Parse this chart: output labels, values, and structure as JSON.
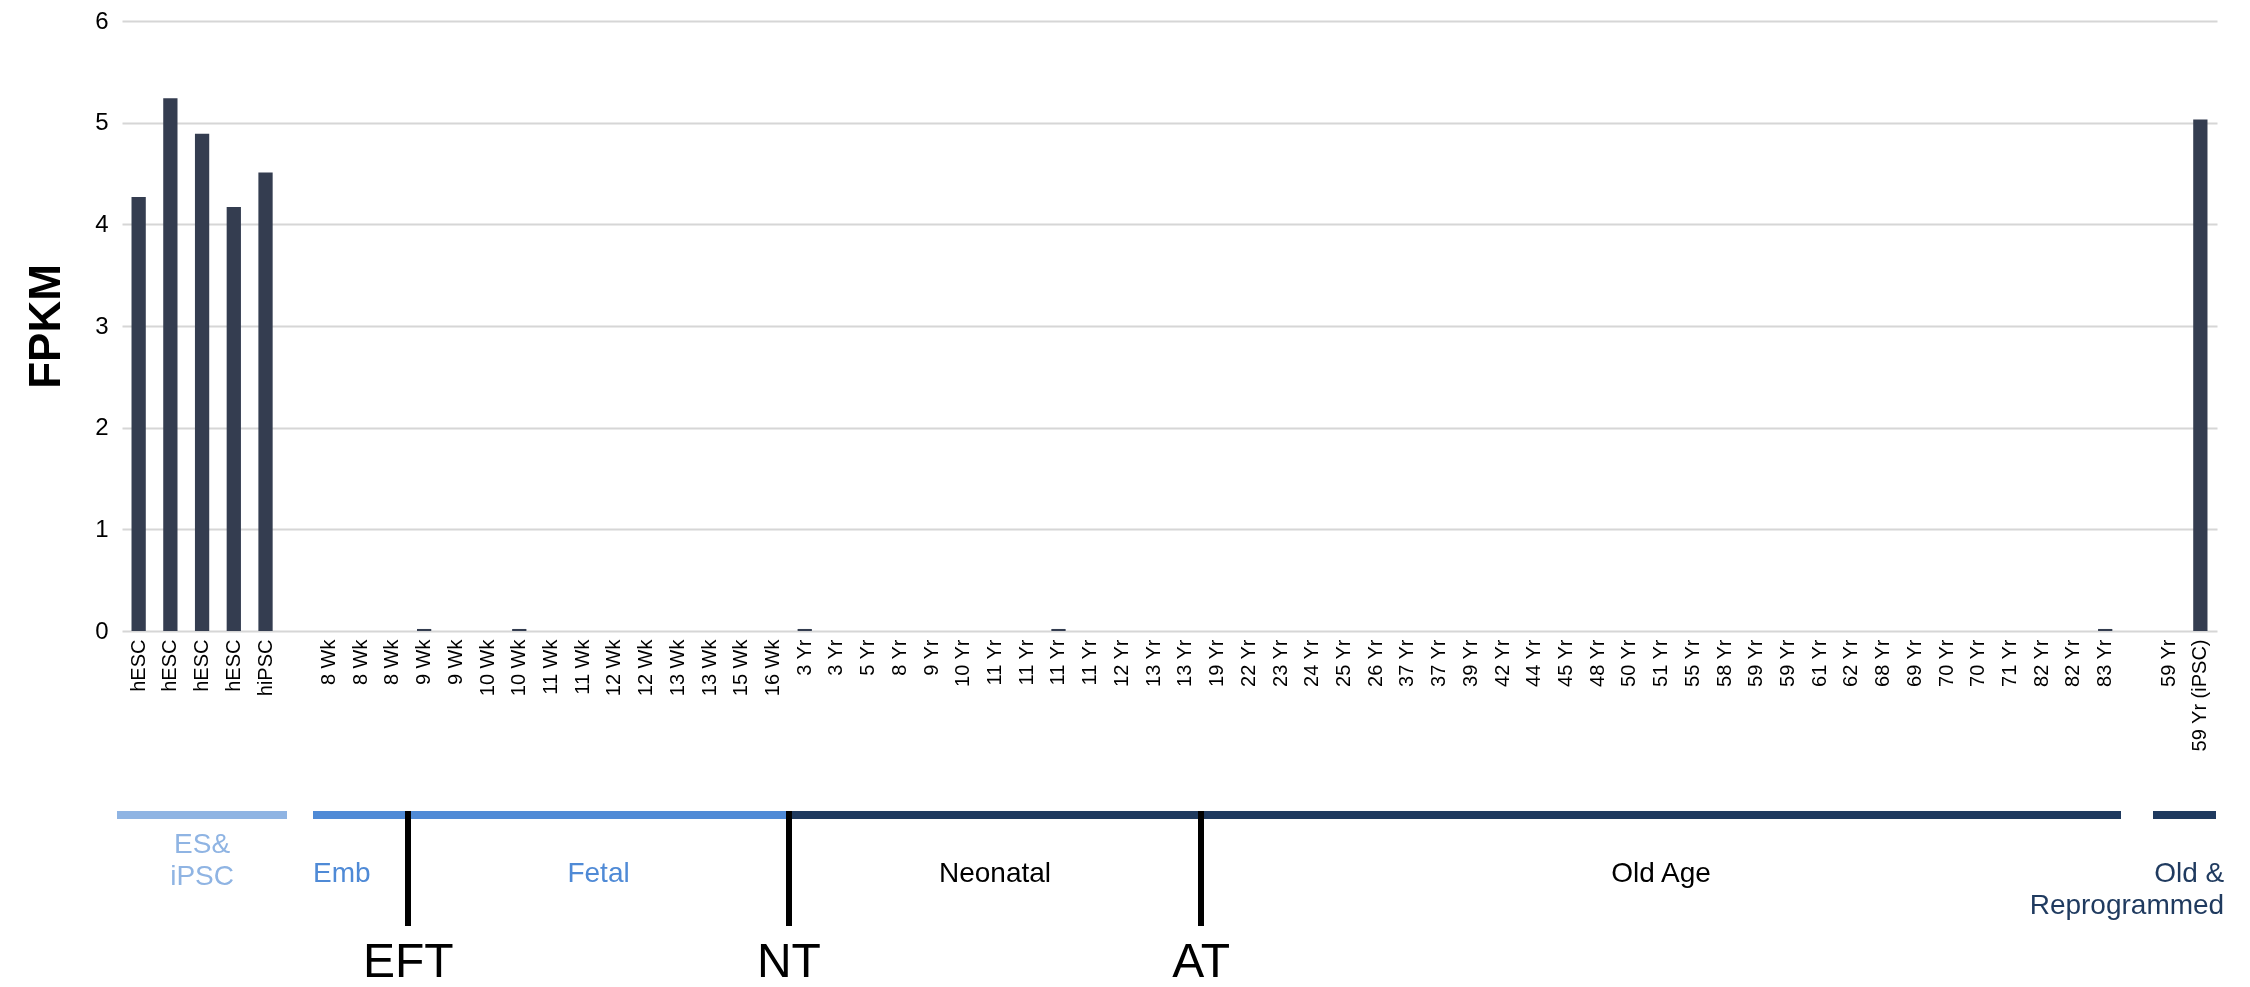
{
  "chart_data": {
    "type": "bar",
    "ylabel": "FPKM",
    "color": "#343d50",
    "categories": [
      "hESC",
      "hESC",
      "hESC",
      "hESC",
      "hiPSC",
      null,
      "8 Wk",
      "8 Wk",
      "8 Wk",
      "9 Wk",
      "9 Wk",
      "10 Wk",
      "10 Wk",
      "11 Wk",
      "11 Wk",
      "12 Wk",
      "12 Wk",
      "13 Wk",
      "13 Wk",
      "15 Wk",
      "16 Wk",
      "3 Yr",
      "3 Yr",
      "5 Yr",
      "8 Yr",
      "9 Yr",
      "10 Yr",
      "11 Yr",
      "11 Yr",
      "11 Yr",
      "11 Yr",
      "12 Yr",
      "13 Yr",
      "13 Yr",
      "19 Yr",
      "22 Yr",
      "23 Yr",
      "24 Yr",
      "25 Yr",
      "26 Yr",
      "37 Yr",
      "37 Yr",
      "39 Yr",
      "42 Yr",
      "44 Yr",
      "45 Yr",
      "48 Yr",
      "50 Yr",
      "51 Yr",
      "55 Yr",
      "58 Yr",
      "59 Yr",
      "59 Yr",
      "61 Yr",
      "62 Yr",
      "68 Yr",
      "69 Yr",
      "70 Yr",
      "70 Yr",
      "71 Yr",
      "82 Yr",
      "82 Yr",
      "83 Yr",
      null,
      "59 Yr",
      "59 Yr (iPSC)"
    ],
    "values": [
      4.27,
      5.24,
      4.89,
      4.17,
      4.51,
      null,
      0,
      0,
      0,
      0.02,
      0,
      0,
      0.02,
      0,
      0,
      0,
      0,
      0,
      0,
      0,
      0,
      0.02,
      0,
      0,
      0,
      0,
      0,
      0,
      0,
      0.02,
      0,
      0,
      0,
      0,
      0,
      0,
      0,
      0,
      0,
      0,
      0,
      0,
      0,
      0,
      0,
      0,
      0,
      0,
      0,
      0,
      0,
      0,
      0,
      0,
      0,
      0,
      0,
      0,
      0,
      0,
      0,
      0,
      0.02,
      null,
      0,
      5.03
    ],
    "ylim": [
      0,
      6
    ],
    "yticks": [
      0,
      1,
      2,
      3,
      4,
      5,
      6
    ],
    "grid": "y",
    "annotations": [
      "ES& iPSC",
      "Emb",
      "Fetal",
      "Neonatal",
      "Old Age",
      "Old & Reprogrammed",
      "EFT",
      "NT",
      "AT"
    ]
  }
}
